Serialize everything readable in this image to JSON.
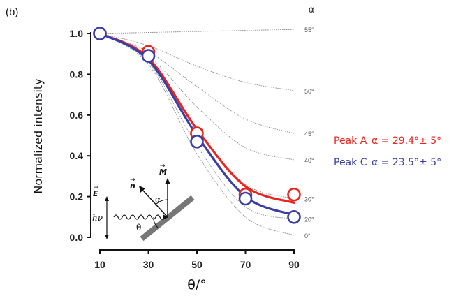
{
  "chart_data": {
    "type": "line",
    "panel_label": "(b)",
    "xlabel": "θ/°",
    "ylabel": "Normalized intensity",
    "xlim": [
      10,
      90
    ],
    "ylim": [
      0.0,
      1.0
    ],
    "x_ticks": [
      "10",
      "30",
      "50",
      "70",
      "90"
    ],
    "y_ticks": [
      "0.0",
      "0.2",
      "0.4",
      "0.6",
      "0.8",
      "1.0"
    ],
    "alpha_header": "α",
    "reference_curves": [
      {
        "label": "55°",
        "x": [
          10,
          30,
          50,
          70,
          90
        ],
        "y": [
          1.0,
          1.005,
          1.01,
          1.015,
          1.02
        ]
      },
      {
        "label": "50°",
        "x": [
          10,
          30,
          50,
          70,
          90
        ],
        "y": [
          1.0,
          0.94,
          0.84,
          0.76,
          0.72
        ]
      },
      {
        "label": "45°",
        "x": [
          10,
          30,
          50,
          70,
          90
        ],
        "y": [
          1.0,
          0.91,
          0.74,
          0.58,
          0.51
        ]
      },
      {
        "label": "40°",
        "x": [
          10,
          30,
          50,
          70,
          90
        ],
        "y": [
          1.0,
          0.89,
          0.64,
          0.44,
          0.38
        ]
      },
      {
        "label": "30°",
        "x": [
          10,
          30,
          50,
          70,
          90
        ],
        "y": [
          1.0,
          0.87,
          0.53,
          0.26,
          0.19
        ]
      },
      {
        "label": "20°",
        "x": [
          10,
          30,
          50,
          70,
          90
        ],
        "y": [
          1.0,
          0.86,
          0.45,
          0.15,
          0.09
        ]
      },
      {
        "label": "0°",
        "x": [
          10,
          30,
          50,
          70,
          90
        ],
        "y": [
          1.0,
          0.85,
          0.41,
          0.1,
          0.01
        ]
      }
    ],
    "series": [
      {
        "name": "Peak A",
        "legend_value": "α = 29.4°± 5°",
        "color": "#e8251f",
        "fit": {
          "x": [
            10,
            30,
            50,
            70,
            90
          ],
          "y": [
            1.0,
            0.88,
            0.53,
            0.25,
            0.17
          ]
        },
        "points": {
          "x": [
            10,
            30,
            50,
            70,
            90
          ],
          "y": [
            1.0,
            0.91,
            0.51,
            0.21,
            0.21
          ]
        }
      },
      {
        "name": "Peak C",
        "legend_value": "α = 23.5°± 5°",
        "color": "#3a3fa6",
        "fit": {
          "x": [
            10,
            30,
            50,
            70,
            90
          ],
          "y": [
            1.0,
            0.87,
            0.5,
            0.2,
            0.11
          ]
        },
        "points": {
          "x": [
            10,
            30,
            50,
            70,
            90
          ],
          "y": [
            1.0,
            0.89,
            0.47,
            0.19,
            0.1
          ]
        }
      }
    ],
    "inset": {
      "e_label": "E",
      "m_label": "M",
      "n_label": "n",
      "alpha_label": "α",
      "theta_label": "θ",
      "hv_label": "hν"
    }
  }
}
